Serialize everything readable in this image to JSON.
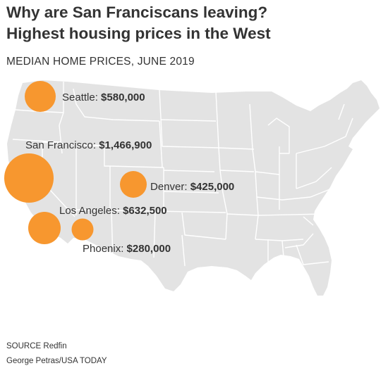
{
  "headline": {
    "line1": "Why are San Franciscans leaving?",
    "line2": "Highest housing prices in the West"
  },
  "subtitle": "MEDIAN HOME PRICES, JUNE 2019",
  "map": {
    "land_color": "#e3e3e3",
    "border_color": "#ffffff",
    "bubble_color": "#f7972f"
  },
  "chart_data": {
    "type": "bubble-map",
    "title": "MEDIAN HOME PRICES, JUNE 2019",
    "region": "United States",
    "cities": [
      {
        "name": "Seattle",
        "label": "Seattle:",
        "price_label": "$580,000",
        "value": 580000
      },
      {
        "name": "San Francisco",
        "label": "San Francisco:",
        "price_label": "$1,466,900",
        "value": 1466900
      },
      {
        "name": "Denver",
        "label": "Denver:",
        "price_label": "$425,000",
        "value": 425000
      },
      {
        "name": "Los Angeles",
        "label": "Los Angeles:",
        "price_label": "$632,500",
        "value": 632500
      },
      {
        "name": "Phoenix",
        "label": "Phoenix:",
        "price_label": "$280,000",
        "value": 280000
      }
    ]
  },
  "source": "SOURCE Redfin",
  "credit": "George Petras/USA TODAY"
}
